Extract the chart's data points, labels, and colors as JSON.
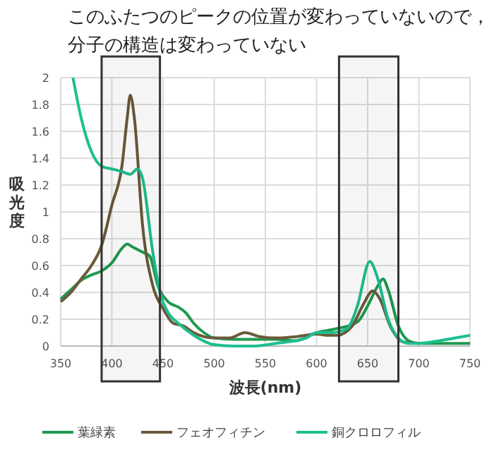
{
  "chart_data": {
    "type": "line",
    "title": "このふたつのピークの位置が変わっていないので，分子の構造は変わっていない",
    "xlabel": "波長(nm)",
    "ylabel": "吸光度",
    "xlim": [
      350,
      750
    ],
    "xticks": [
      350,
      400,
      450,
      500,
      550,
      600,
      650,
      700,
      750
    ],
    "ylim": [
      0,
      2
    ],
    "yticks": [
      0,
      0.2,
      0.4,
      0.6,
      0.8,
      1,
      1.2,
      1.4,
      1.6,
      1.8,
      2
    ],
    "grid": true,
    "legend": "bottom",
    "marker": "none",
    "line_style": "solid",
    "bands": [
      {
        "axis": "x",
        "from": 390,
        "to": 447
      },
      {
        "axis": "x",
        "from": 622,
        "to": 680
      }
    ],
    "series": [
      {
        "name": "葉緑素",
        "color": "#1e9a50",
        "x": [
          350,
          360,
          370,
          380,
          390,
          400,
          410,
          415,
          420,
          430,
          437,
          445,
          455,
          465,
          472,
          480,
          490,
          500,
          520,
          540,
          560,
          580,
          600,
          620,
          640,
          650,
          660,
          665,
          670,
          680,
          690,
          700,
          720,
          750
        ],
        "values": [
          0.35,
          0.42,
          0.49,
          0.53,
          0.56,
          0.62,
          0.73,
          0.76,
          0.74,
          0.7,
          0.67,
          0.45,
          0.33,
          0.29,
          0.25,
          0.17,
          0.1,
          0.06,
          0.05,
          0.05,
          0.05,
          0.04,
          0.1,
          0.13,
          0.18,
          0.3,
          0.45,
          0.5,
          0.42,
          0.15,
          0.04,
          0.02,
          0.02,
          0.02
        ]
      },
      {
        "name": "フェオフィチン",
        "color": "#6b5a3a",
        "x": [
          350,
          360,
          370,
          380,
          390,
          400,
          410,
          415,
          418,
          422,
          430,
          440,
          450,
          460,
          470,
          480,
          500,
          515,
          530,
          545,
          560,
          580,
          600,
          610,
          620,
          635,
          645,
          655,
          662,
          672,
          685,
          700
        ],
        "values": [
          0.33,
          0.4,
          0.5,
          0.6,
          0.75,
          1.05,
          1.35,
          1.7,
          1.87,
          1.7,
          0.9,
          0.45,
          0.28,
          0.17,
          0.15,
          0.1,
          0.06,
          0.06,
          0.1,
          0.07,
          0.06,
          0.07,
          0.09,
          0.08,
          0.08,
          0.15,
          0.3,
          0.41,
          0.35,
          0.15,
          0.03,
          0.02
        ]
      },
      {
        "name": "銅クロロフィル",
        "color": "#1dbf8f",
        "x": [
          362,
          370,
          380,
          390,
          400,
          410,
          418,
          425,
          430,
          440,
          447,
          455,
          465,
          480,
          500,
          520,
          540,
          560,
          590,
          600,
          615,
          630,
          640,
          652,
          660,
          670,
          680,
          690,
          700,
          720,
          750
        ],
        "values": [
          2,
          1.7,
          1.45,
          1.34,
          1.32,
          1.3,
          1.28,
          1.32,
          1.25,
          0.7,
          0.4,
          0.25,
          0.17,
          0.08,
          0.01,
          0,
          0,
          0.02,
          0.06,
          0.1,
          0.1,
          0.13,
          0.3,
          0.63,
          0.5,
          0.2,
          0.06,
          0.02,
          0.02,
          0.04,
          0.08
        ]
      }
    ]
  }
}
